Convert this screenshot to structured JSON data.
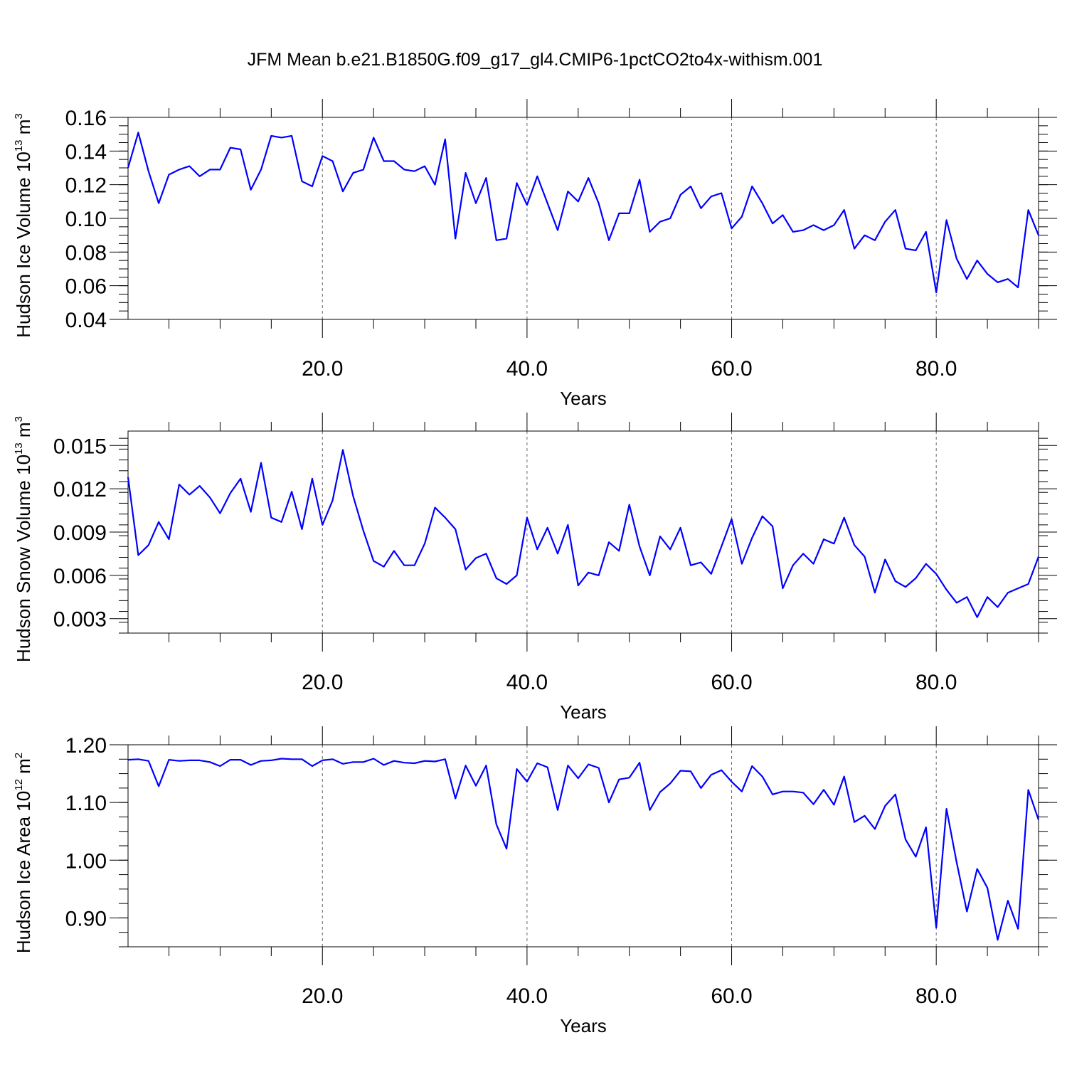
{
  "title": "JFM Mean b.e21.B1850G.f09_g17_gl4.CMIP6-1pctCO2to4x-withism.001",
  "chart_data": [
    {
      "type": "line",
      "xlabel": "Years",
      "ylabel_main": "Hudson Ice Volume 10",
      "ylabel_exp": "13",
      "ylabel_unit": " m",
      "ylabel_unit_exp": "3",
      "xlim": [
        1,
        90
      ],
      "ylim": [
        0.04,
        0.16
      ],
      "xticks": [
        20,
        40,
        60,
        80
      ],
      "xtick_labels": [
        "20.0",
        "40.0",
        "60.0",
        "80.0"
      ],
      "yticks": [
        0.04,
        0.06,
        0.08,
        0.1,
        0.12,
        0.14,
        0.16
      ],
      "ytick_labels": [
        "0.04",
        "0.06",
        "0.08",
        "0.10",
        "0.12",
        "0.14",
        "0.16"
      ],
      "grid": "vertical dashed at major x ticks",
      "color": "#0000ff",
      "x": [
        1,
        2,
        3,
        4,
        5,
        6,
        7,
        8,
        9,
        10,
        11,
        12,
        13,
        14,
        15,
        16,
        17,
        18,
        19,
        20,
        21,
        22,
        23,
        24,
        25,
        26,
        27,
        28,
        29,
        30,
        31,
        32,
        33,
        34,
        35,
        36,
        37,
        38,
        39,
        40,
        41,
        42,
        43,
        44,
        45,
        46,
        47,
        48,
        49,
        50,
        51,
        52,
        53,
        54,
        55,
        56,
        57,
        58,
        59,
        60,
        61,
        62,
        63,
        64,
        65,
        66,
        67,
        68,
        69,
        70,
        71,
        72,
        73,
        74,
        75,
        76,
        77,
        78,
        79,
        80,
        81,
        82,
        83,
        84,
        85,
        86,
        87,
        88,
        89,
        90
      ],
      "y": [
        0.13,
        0.151,
        0.128,
        0.109,
        0.126,
        0.129,
        0.131,
        0.125,
        0.129,
        0.129,
        0.142,
        0.141,
        0.117,
        0.129,
        0.149,
        0.148,
        0.149,
        0.122,
        0.119,
        0.137,
        0.134,
        0.116,
        0.127,
        0.129,
        0.148,
        0.134,
        0.134,
        0.129,
        0.128,
        0.131,
        0.12,
        0.147,
        0.088,
        0.127,
        0.109,
        0.124,
        0.087,
        0.088,
        0.121,
        0.108,
        0.125,
        0.109,
        0.093,
        0.116,
        0.11,
        0.124,
        0.109,
        0.087,
        0.103,
        0.103,
        0.123,
        0.092,
        0.098,
        0.1,
        0.114,
        0.119,
        0.106,
        0.113,
        0.115,
        0.094,
        0.101,
        0.119,
        0.109,
        0.097,
        0.102,
        0.092,
        0.093,
        0.096,
        0.093,
        0.096,
        0.105,
        0.082,
        0.09,
        0.087,
        0.098,
        0.105,
        0.082,
        0.081,
        0.092,
        0.056,
        0.099,
        0.076,
        0.064,
        0.075,
        0.067,
        0.062,
        0.064,
        0.059,
        0.105,
        0.09
      ]
    },
    {
      "type": "line",
      "xlabel": "Years",
      "ylabel_main": "Hudson Snow Volume 10",
      "ylabel_exp": "13",
      "ylabel_unit": " m",
      "ylabel_unit_exp": "3",
      "xlim": [
        1,
        90
      ],
      "ylim": [
        0.002,
        0.016
      ],
      "xticks": [
        20,
        40,
        60,
        80
      ],
      "xtick_labels": [
        "20.0",
        "40.0",
        "60.0",
        "80.0"
      ],
      "yticks": [
        0.003,
        0.006,
        0.009,
        0.012,
        0.015
      ],
      "ytick_labels": [
        "0.003",
        "0.006",
        "0.009",
        "0.012",
        "0.015"
      ],
      "grid": "vertical dashed at major x ticks",
      "color": "#0000ff",
      "x": [
        1,
        2,
        3,
        4,
        5,
        6,
        7,
        8,
        9,
        10,
        11,
        12,
        13,
        14,
        15,
        16,
        17,
        18,
        19,
        20,
        21,
        22,
        23,
        24,
        25,
        26,
        27,
        28,
        29,
        30,
        31,
        32,
        33,
        34,
        35,
        36,
        37,
        38,
        39,
        40,
        41,
        42,
        43,
        44,
        45,
        46,
        47,
        48,
        49,
        50,
        51,
        52,
        53,
        54,
        55,
        56,
        57,
        58,
        59,
        60,
        61,
        62,
        63,
        64,
        65,
        66,
        67,
        68,
        69,
        70,
        71,
        72,
        73,
        74,
        75,
        76,
        77,
        78,
        79,
        80,
        81,
        82,
        83,
        84,
        85,
        86,
        87,
        88,
        89,
        90
      ],
      "y": [
        0.0128,
        0.0074,
        0.0081,
        0.0097,
        0.0085,
        0.0123,
        0.0116,
        0.0122,
        0.0114,
        0.0103,
        0.0117,
        0.0127,
        0.0104,
        0.0138,
        0.01,
        0.0097,
        0.0118,
        0.0092,
        0.0127,
        0.0095,
        0.0112,
        0.0147,
        0.0115,
        0.0091,
        0.007,
        0.0066,
        0.0077,
        0.0067,
        0.0067,
        0.0082,
        0.0107,
        0.01,
        0.0092,
        0.0064,
        0.0072,
        0.0075,
        0.0058,
        0.0054,
        0.006,
        0.01,
        0.0078,
        0.0093,
        0.0075,
        0.0095,
        0.0053,
        0.0062,
        0.006,
        0.0083,
        0.0077,
        0.0109,
        0.008,
        0.006,
        0.0087,
        0.0078,
        0.0093,
        0.0067,
        0.0069,
        0.0061,
        0.008,
        0.0099,
        0.0068,
        0.0086,
        0.0101,
        0.0094,
        0.0051,
        0.0067,
        0.0075,
        0.0068,
        0.0085,
        0.0082,
        0.01,
        0.0081,
        0.0073,
        0.0048,
        0.0071,
        0.0056,
        0.0052,
        0.0058,
        0.0068,
        0.0061,
        0.005,
        0.0041,
        0.0045,
        0.0031,
        0.0045,
        0.0038,
        0.0048,
        0.0051,
        0.0054,
        0.0073
      ]
    },
    {
      "type": "line",
      "xlabel": "Years",
      "ylabel_main": "Hudson Ice Area 10",
      "ylabel_exp": "12",
      "ylabel_unit": " m",
      "ylabel_unit_exp": "2",
      "xlim": [
        1,
        90
      ],
      "ylim": [
        0.85,
        1.2
      ],
      "xticks": [
        20,
        40,
        60,
        80
      ],
      "xtick_labels": [
        "20.0",
        "40.0",
        "60.0",
        "80.0"
      ],
      "yticks": [
        0.9,
        1.0,
        1.1,
        1.2
      ],
      "ytick_labels": [
        "0.90",
        "1.00",
        "1.10",
        "1.20"
      ],
      "grid": "vertical dashed at major x ticks",
      "color": "#0000ff",
      "x": [
        1,
        2,
        3,
        4,
        5,
        6,
        7,
        8,
        9,
        10,
        11,
        12,
        13,
        14,
        15,
        16,
        17,
        18,
        19,
        20,
        21,
        22,
        23,
        24,
        25,
        26,
        27,
        28,
        29,
        30,
        31,
        32,
        33,
        34,
        35,
        36,
        37,
        38,
        39,
        40,
        41,
        42,
        43,
        44,
        45,
        46,
        47,
        48,
        49,
        50,
        51,
        52,
        53,
        54,
        55,
        56,
        57,
        58,
        59,
        60,
        61,
        62,
        63,
        64,
        65,
        66,
        67,
        68,
        69,
        70,
        71,
        72,
        73,
        74,
        75,
        76,
        77,
        78,
        79,
        80,
        81,
        82,
        83,
        84,
        85,
        86,
        87,
        88,
        89,
        90
      ],
      "y": [
        1.174,
        1.175,
        1.172,
        1.128,
        1.174,
        1.172,
        1.173,
        1.173,
        1.17,
        1.163,
        1.174,
        1.174,
        1.165,
        1.172,
        1.173,
        1.176,
        1.175,
        1.175,
        1.163,
        1.173,
        1.175,
        1.167,
        1.17,
        1.17,
        1.176,
        1.165,
        1.172,
        1.169,
        1.168,
        1.172,
        1.171,
        1.175,
        1.107,
        1.164,
        1.129,
        1.164,
        1.062,
        1.02,
        1.158,
        1.136,
        1.168,
        1.161,
        1.087,
        1.164,
        1.142,
        1.166,
        1.16,
        1.1,
        1.14,
        1.143,
        1.169,
        1.087,
        1.118,
        1.133,
        1.155,
        1.154,
        1.125,
        1.148,
        1.156,
        1.136,
        1.119,
        1.163,
        1.145,
        1.114,
        1.119,
        1.119,
        1.117,
        1.097,
        1.122,
        1.096,
        1.145,
        1.066,
        1.077,
        1.054,
        1.094,
        1.114,
        1.036,
        1.006,
        1.057,
        0.883,
        1.089,
        0.996,
        0.911,
        0.985,
        0.952,
        0.862,
        0.93,
        0.881,
        1.122,
        1.07
      ]
    }
  ]
}
